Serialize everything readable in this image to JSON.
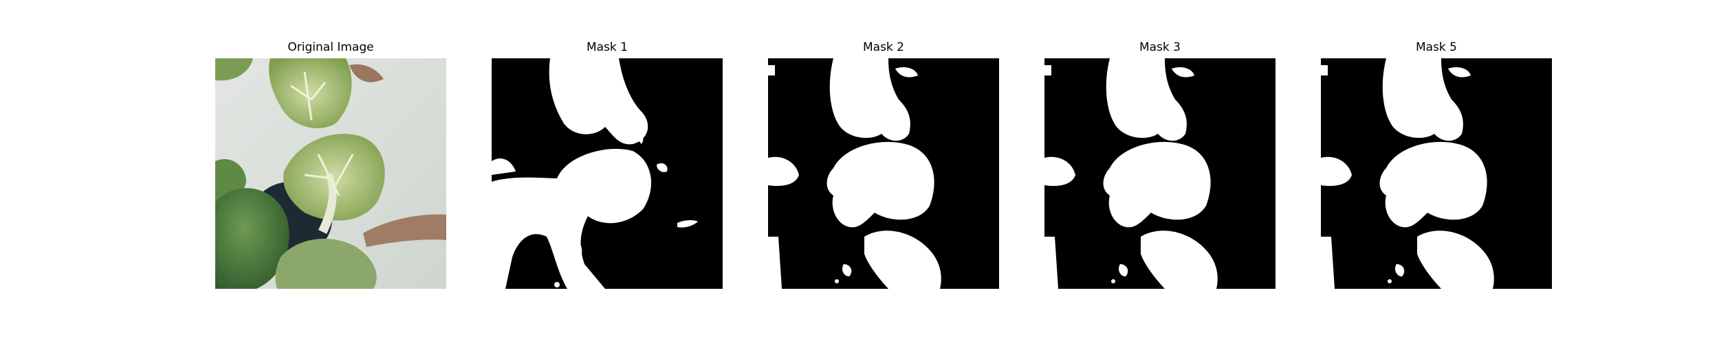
{
  "panels": [
    {
      "title": "Original Image"
    },
    {
      "title": "Mask 1"
    },
    {
      "title": "Mask 2"
    },
    {
      "title": "Mask 3"
    },
    {
      "title": "Mask 5"
    }
  ],
  "colors": {
    "mask_foreground": "#ffffff",
    "mask_background": "#000000",
    "leaf_dark": "#4f7a3a",
    "leaf_light": "#b5c98c",
    "background_surface": "#dfe3df"
  }
}
